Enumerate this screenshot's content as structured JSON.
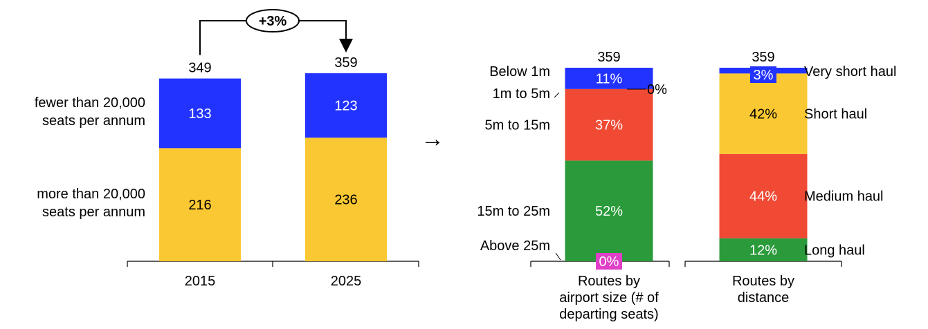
{
  "chart_data": [
    {
      "type": "bar",
      "stacked": true,
      "categories": [
        "2015",
        "2025"
      ],
      "series": [
        {
          "name": "more than 20,000 seats per annum",
          "values": [
            216,
            236
          ],
          "color": "#FAC832",
          "label_lines": [
            "more than 20,000",
            "seats per annum"
          ]
        },
        {
          "name": "fewer than 20,000 seats per annum",
          "values": [
            133,
            123
          ],
          "color": "#2233FF",
          "label_lines": [
            "fewer than 20,000",
            "seats per annum"
          ]
        }
      ],
      "totals": [
        349,
        359
      ],
      "change_label": "+3%"
    },
    {
      "type": "bar",
      "stacked": true,
      "categories": [
        "Routes by airport size (# of departing seats)",
        "Routes by distance"
      ],
      "category_label_lines": [
        [
          "Routes by",
          "airport size (# of",
          "departing seats)"
        ],
        [
          "Routes by",
          "distance"
        ]
      ],
      "total": 359,
      "arrow_glyph": "→",
      "bars": [
        {
          "segments": [
            {
              "name": "Above 25m",
              "value": 0,
              "label": "0%",
              "color": "#E040C8"
            },
            {
              "name": "15m to 25m",
              "value": 52,
              "label": "52%",
              "color": "#2A9A3A"
            },
            {
              "name": "5m to 15m",
              "value": 37,
              "label": "37%",
              "color": "#F04A35"
            },
            {
              "name": "1m to 5m",
              "value": 0,
              "label": "0%",
              "color": "#F04A35"
            },
            {
              "name": "Below 1m",
              "value": 11,
              "label": "11%",
              "color": "#2233FF"
            }
          ]
        },
        {
          "segments": [
            {
              "name": "Long haul",
              "value": 12,
              "label": "12%",
              "color": "#2A9A3A"
            },
            {
              "name": "Medium haul",
              "value": 44,
              "label": "44%",
              "color": "#F04A35"
            },
            {
              "name": "Short haul",
              "value": 42,
              "label": "42%",
              "color": "#FAC832"
            },
            {
              "name": "Very short haul",
              "value": 3,
              "label": "3%",
              "color": "#2233FF"
            }
          ]
        }
      ]
    }
  ]
}
